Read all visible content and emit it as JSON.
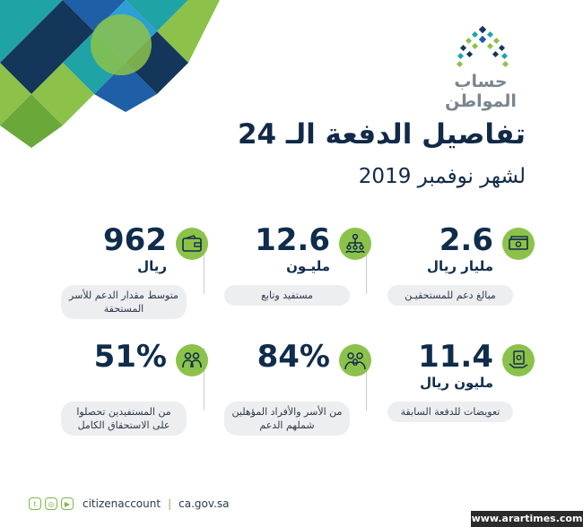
{
  "brand": {
    "name": "حساب المواطن"
  },
  "title": {
    "line1": "تفاصيل الدفعة الـ 24",
    "line2": "لشهر نوفمبر 2019"
  },
  "stats": [
    {
      "value": "2.6",
      "unit": "مليار ريال",
      "label": "مبالغ دعم للمستحقيـن",
      "icon": "money-stack-icon"
    },
    {
      "value": "12.6",
      "unit": "مليـون",
      "label": "مستفيد وتابع",
      "icon": "hierarchy-people-icon"
    },
    {
      "value": "962",
      "unit": "ريال",
      "label": "متوسط مقدار الدعم للأسر المستحقة",
      "icon": "wallet-icon"
    },
    {
      "value": "11.4",
      "unit": "مليون ريال",
      "label": "تعويضات للدفعة السابقة",
      "icon": "cash-hand-icon"
    },
    {
      "value": "84%",
      "unit": "",
      "label": "من الأسر والأفراد المؤهلين شملهم الدعم",
      "icon": "family-icon"
    },
    {
      "value": "51%",
      "unit": "",
      "label": "من المستفيدين تحصلوا على الاستحقاق الكامل",
      "icon": "two-people-icon"
    }
  ],
  "footer": {
    "handle": "citizenaccount",
    "separator": "|",
    "website": "ca.gov.sa"
  },
  "watermark": "www.arartimes.com",
  "colors": {
    "navy": "#0f2c4c",
    "green": "#8cc24a",
    "teal": "#1fa3a7",
    "blue": "#1f5fa8"
  }
}
